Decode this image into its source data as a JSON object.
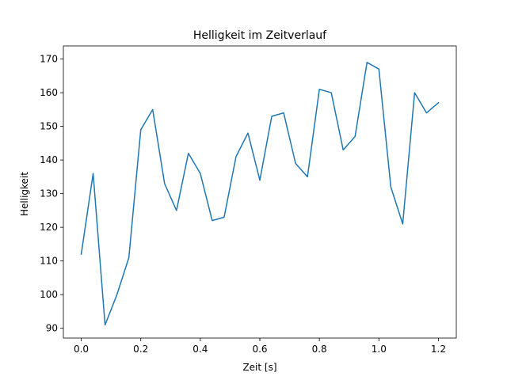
{
  "chart_data": {
    "type": "line",
    "title": "Helligkeit im Zeitverlauf",
    "xlabel": "Zeit [s]",
    "ylabel": "Helligkeit",
    "xlim": [
      -0.06,
      1.26
    ],
    "ylim": [
      87.1,
      173.9
    ],
    "xticks": [
      0.0,
      0.2,
      0.4,
      0.6,
      0.8,
      1.0,
      1.2
    ],
    "xtick_labels": [
      "0.0",
      "0.2",
      "0.4",
      "0.6",
      "0.8",
      "1.0",
      "1.2"
    ],
    "yticks": [
      90,
      100,
      110,
      120,
      130,
      140,
      150,
      160,
      170
    ],
    "ytick_labels": [
      "90",
      "100",
      "110",
      "120",
      "130",
      "140",
      "150",
      "160",
      "170"
    ],
    "grid": false,
    "series": [
      {
        "color": "#1f77b4",
        "x": [
          0.0,
          0.04,
          0.08,
          0.12,
          0.16,
          0.2,
          0.24,
          0.28,
          0.32,
          0.36,
          0.4,
          0.44,
          0.48,
          0.52,
          0.56,
          0.6,
          0.64,
          0.68,
          0.72,
          0.76,
          0.8,
          0.84,
          0.88,
          0.92,
          0.96,
          1.0,
          1.04,
          1.08,
          1.12,
          1.16,
          1.2
        ],
        "y": [
          112,
          136,
          91,
          100,
          111,
          149,
          155,
          133,
          125,
          142,
          136,
          122,
          123,
          141,
          148,
          134,
          153,
          154,
          139,
          135,
          161,
          160,
          143,
          147,
          169,
          167,
          132,
          121,
          160,
          154,
          157
        ]
      }
    ]
  }
}
